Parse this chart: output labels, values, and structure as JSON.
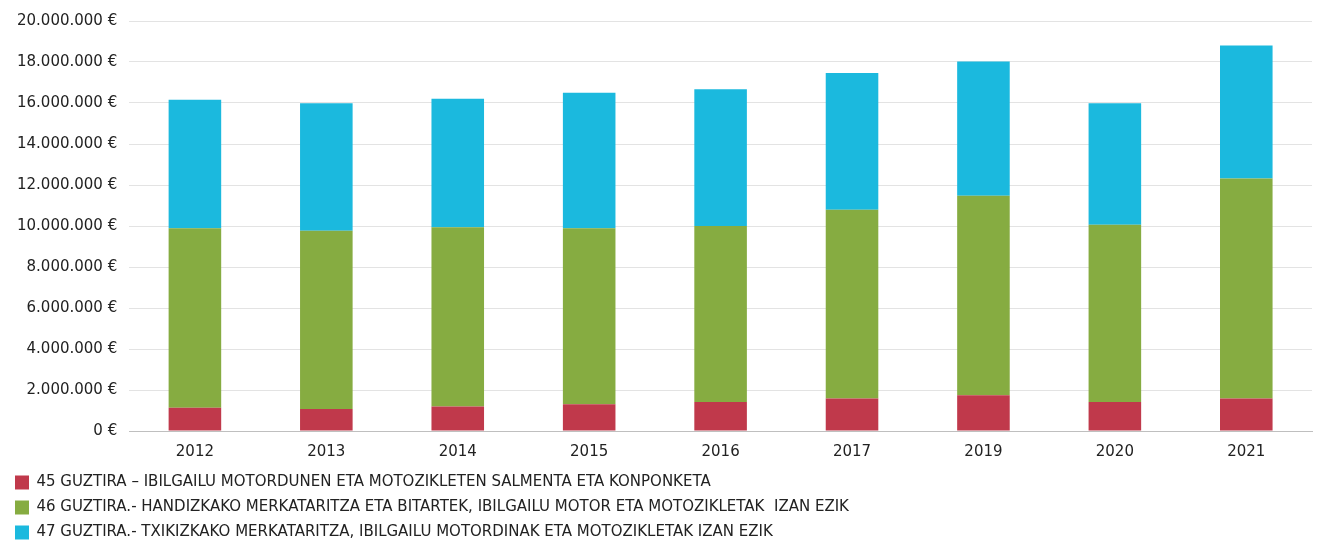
{
  "chart_data": {
    "type": "bar",
    "stacked": true,
    "categories": [
      "2012",
      "2013",
      "2014",
      "2015",
      "2016",
      "2017",
      "2019",
      "2020",
      "2021"
    ],
    "series": [
      {
        "name": "45 GUZTIRA – IBILGAILU MOTORDUNEN ETA MOTOZIKLETEN SALMENTA ETA KONPONKETA",
        "color": "#c0394b",
        "values": [
          1130000,
          1070000,
          1190000,
          1300000,
          1410000,
          1580000,
          1750000,
          1410000,
          1580000
        ]
      },
      {
        "name": "46 GUZTIRA.- HANDIZKAKO MERKATARITZA ETA BITARTEK, IBILGAILU MOTOR ETA MOTOZIKLETAK  IZAN EZIK",
        "color": "#86ac41",
        "values": [
          8760000,
          8700000,
          8750000,
          8590000,
          8590000,
          9210000,
          9720000,
          8650000,
          10740000
        ]
      },
      {
        "name": "47 GUZTIRA.- TXIKIZKAKO MERKATARITZA, IBILGAILU MOTORDINAK ETA MOTOZIKLETAK IZAN EZIK",
        "color": "#1bb9de",
        "values": [
          6270000,
          6220000,
          6270000,
          6610000,
          6670000,
          6670000,
          6550000,
          5930000,
          6490000
        ]
      }
    ],
    "ylim": [
      0,
      20000000
    ],
    "yticks": [
      {
        "value": 0,
        "label": "0 €"
      },
      {
        "value": 2000000,
        "label": "2.000.000 €"
      },
      {
        "value": 4000000,
        "label": "4.000.000 €"
      },
      {
        "value": 6000000,
        "label": "6.000.000 €"
      },
      {
        "value": 8000000,
        "label": "8.000.000 €"
      },
      {
        "value": 10000000,
        "label": "10.000.000 €"
      },
      {
        "value": 12000000,
        "label": "12.000.000 €"
      },
      {
        "value": 14000000,
        "label": "14.000.000 €"
      },
      {
        "value": 16000000,
        "label": "16.000.000 €"
      },
      {
        "value": 18000000,
        "label": "18.000.000 €"
      },
      {
        "value": 20000000,
        "label": "20.000.000 €"
      }
    ],
    "grid": "y",
    "legend": "bottom"
  }
}
